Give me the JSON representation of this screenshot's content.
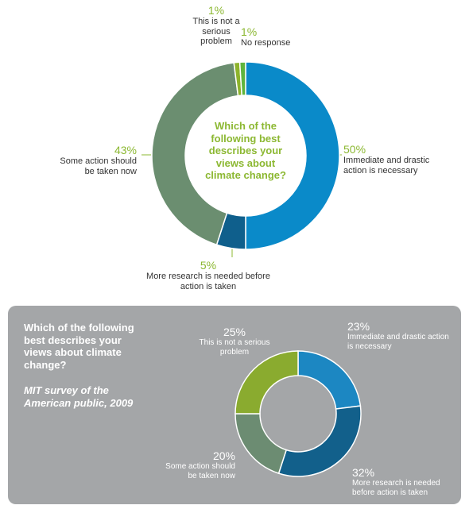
{
  "chart_data": [
    {
      "type": "donut",
      "title": "Which of the following best describes your views about climate change?",
      "categories": [
        "Immediate and drastic action is necessary",
        "More research is needed before action is taken",
        "Some action should be taken now",
        "This is not a serious problem",
        "No response"
      ],
      "values": [
        50,
        5,
        43,
        1,
        1
      ],
      "value_labels": [
        "50%",
        "5%",
        "43%",
        "1%",
        "1%"
      ],
      "colors": [
        "#0a8ac9",
        "#0f5f8c",
        "#6b8e70",
        "#8db32c",
        "#5fb53e"
      ]
    },
    {
      "type": "donut",
      "title": "Which of the following best describes your views about climate change?",
      "subtitle": "MIT survey of the American public, 2009",
      "categories": [
        "Immediate and drastic action is necessary",
        "More research is needed before action is taken",
        "Some action should be taken now",
        "This is not a serious problem"
      ],
      "values": [
        23,
        32,
        20,
        25
      ],
      "value_labels": [
        "23%",
        "32%",
        "20%",
        "25%"
      ],
      "colors": [
        "#1c87c2",
        "#12608b",
        "#6c8c72",
        "#8aab2f"
      ]
    }
  ]
}
